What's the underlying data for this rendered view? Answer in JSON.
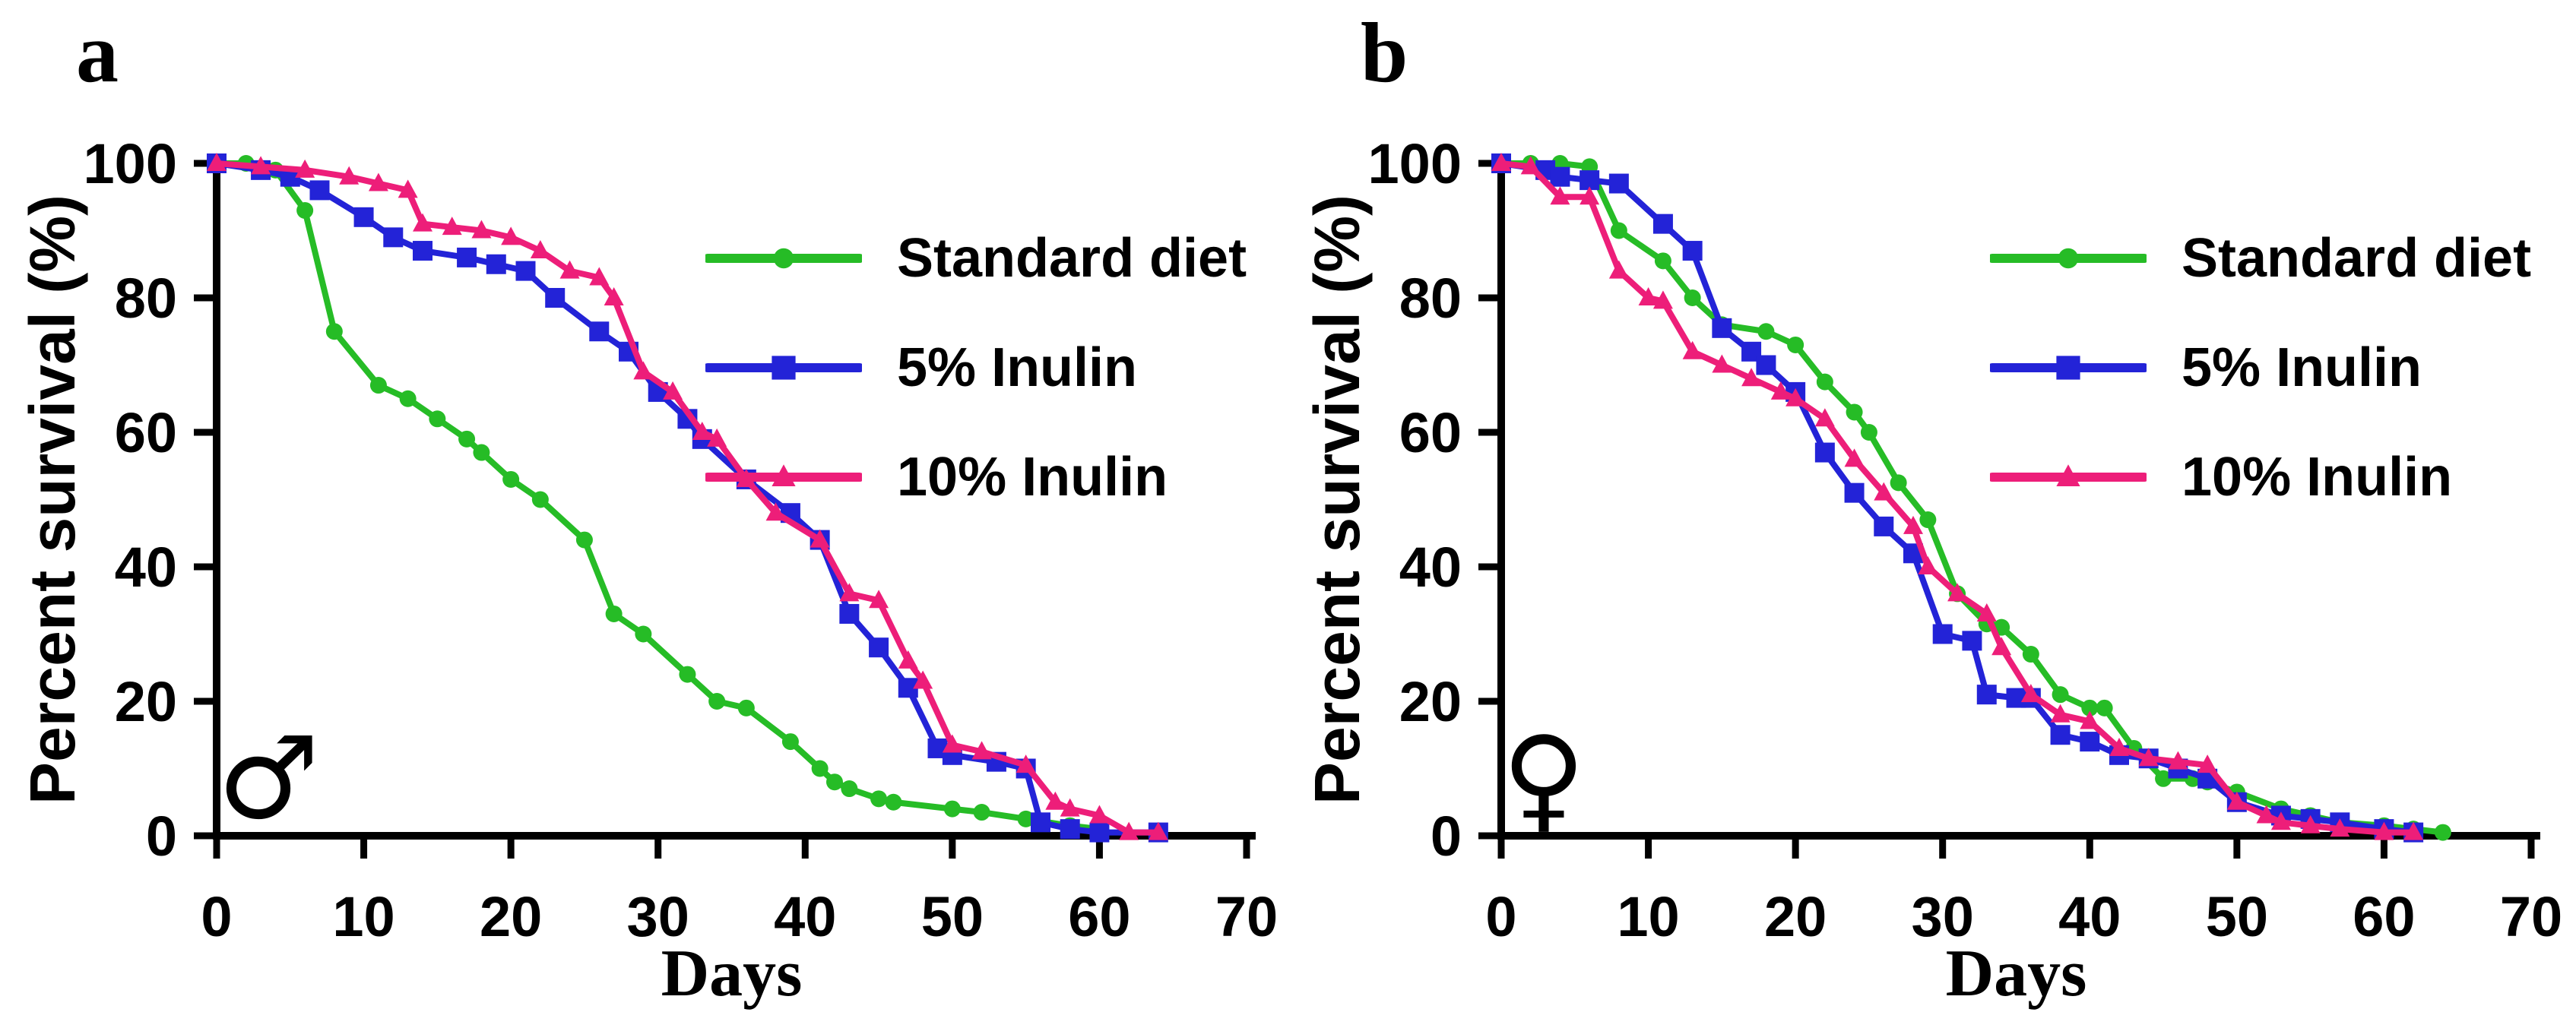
{
  "figure": {
    "background": "#FFFFFF",
    "text_color": "#000000",
    "axis_color": "#000000"
  },
  "chart_data": [
    {
      "type": "line",
      "panel_label": "a",
      "sex": "male",
      "sex_symbol": "♂",
      "xlabel": "Days",
      "ylabel": "Percent survival (%)",
      "xlim": [
        0,
        70
      ],
      "ylim": [
        0,
        100
      ],
      "xticks": [
        0,
        10,
        20,
        30,
        40,
        50,
        60,
        70
      ],
      "yticks": [
        0,
        20,
        40,
        60,
        80,
        100
      ],
      "grid": false,
      "legend_position": "upper-right-inside",
      "series": [
        {
          "name": "Standard diet",
          "color": "#26BC26",
          "marker": "circle",
          "points": [
            [
              0,
              100
            ],
            [
              2,
              100
            ],
            [
              4,
              99
            ],
            [
              6,
              93
            ],
            [
              8,
              75
            ],
            [
              11,
              67
            ],
            [
              13,
              65
            ],
            [
              15,
              62
            ],
            [
              17,
              59
            ],
            [
              18,
              57
            ],
            [
              20,
              53
            ],
            [
              22,
              50
            ],
            [
              25,
              44
            ],
            [
              27,
              33
            ],
            [
              29,
              30
            ],
            [
              32,
              24
            ],
            [
              34,
              20
            ],
            [
              36,
              19
            ],
            [
              39,
              14
            ],
            [
              41,
              10
            ],
            [
              42,
              8
            ],
            [
              43,
              7
            ],
            [
              45,
              5.5
            ],
            [
              46,
              5
            ],
            [
              50,
              4
            ],
            [
              52,
              3.5
            ],
            [
              55,
              2.5
            ],
            [
              58,
              1.5
            ],
            [
              60,
              1
            ]
          ]
        },
        {
          "name": "5% Inulin",
          "color": "#2323D7",
          "marker": "square",
          "points": [
            [
              0,
              100
            ],
            [
              3,
              99
            ],
            [
              5,
              98
            ],
            [
              7,
              96
            ],
            [
              10,
              92
            ],
            [
              12,
              89
            ],
            [
              14,
              87
            ],
            [
              17,
              86
            ],
            [
              19,
              85
            ],
            [
              21,
              84
            ],
            [
              23,
              80
            ],
            [
              26,
              75
            ],
            [
              28,
              72
            ],
            [
              30,
              66
            ],
            [
              32,
              62
            ],
            [
              33,
              59
            ],
            [
              36,
              53
            ],
            [
              39,
              48
            ],
            [
              41,
              44
            ],
            [
              43,
              33
            ],
            [
              45,
              28
            ],
            [
              47,
              22
            ],
            [
              49,
              13
            ],
            [
              50,
              12
            ],
            [
              53,
              11
            ],
            [
              55,
              10
            ],
            [
              56,
              2
            ],
            [
              58,
              1
            ],
            [
              60,
              0.5
            ],
            [
              64,
              0.5
            ]
          ]
        },
        {
          "name": "10% Inulin",
          "color": "#ED1E79",
          "marker": "triangle",
          "points": [
            [
              0,
              100
            ],
            [
              3,
              99.5
            ],
            [
              6,
              99
            ],
            [
              9,
              98
            ],
            [
              11,
              97
            ],
            [
              13,
              96
            ],
            [
              14,
              91
            ],
            [
              16,
              90.5
            ],
            [
              18,
              90
            ],
            [
              20,
              89
            ],
            [
              22,
              87
            ],
            [
              24,
              84
            ],
            [
              26,
              83
            ],
            [
              27,
              80
            ],
            [
              29,
              69
            ],
            [
              31,
              66
            ],
            [
              33,
              60
            ],
            [
              34,
              59
            ],
            [
              36,
              53
            ],
            [
              38,
              48
            ],
            [
              41,
              44
            ],
            [
              43,
              36
            ],
            [
              45,
              35
            ],
            [
              47,
              26
            ],
            [
              48,
              23
            ],
            [
              50,
              13.5
            ],
            [
              52,
              12.5
            ],
            [
              55,
              10.5
            ],
            [
              57,
              5
            ],
            [
              58,
              4
            ],
            [
              60,
              3
            ],
            [
              62,
              0.5
            ],
            [
              64,
              0.5
            ]
          ]
        }
      ]
    },
    {
      "type": "line",
      "panel_label": "b",
      "sex": "female",
      "sex_symbol": "♀",
      "xlabel": "Days",
      "ylabel": "Percent survival (%)",
      "xlim": [
        0,
        70
      ],
      "ylim": [
        0,
        100
      ],
      "xticks": [
        0,
        10,
        20,
        30,
        40,
        50,
        60,
        70
      ],
      "yticks": [
        0,
        20,
        40,
        60,
        80,
        100
      ],
      "grid": false,
      "legend_position": "upper-right-inside",
      "series": [
        {
          "name": "Standard diet",
          "color": "#26BC26",
          "marker": "circle",
          "points": [
            [
              0,
              100
            ],
            [
              2,
              100
            ],
            [
              4,
              100
            ],
            [
              6,
              99.5
            ],
            [
              8,
              90
            ],
            [
              11,
              85.5
            ],
            [
              13,
              80
            ],
            [
              15,
              76
            ],
            [
              18,
              75
            ],
            [
              20,
              73
            ],
            [
              22,
              67.5
            ],
            [
              24,
              63
            ],
            [
              25,
              60
            ],
            [
              27,
              52.5
            ],
            [
              29,
              47
            ],
            [
              31,
              36
            ],
            [
              33,
              31.5
            ],
            [
              34,
              31
            ],
            [
              36,
              27
            ],
            [
              38,
              21
            ],
            [
              40,
              19
            ],
            [
              41,
              19
            ],
            [
              43,
              13
            ],
            [
              45,
              8.5
            ],
            [
              47,
              8.5
            ],
            [
              48,
              8
            ],
            [
              50,
              6.5
            ],
            [
              53,
              4
            ],
            [
              55,
              3
            ],
            [
              57,
              2
            ],
            [
              60,
              1.5
            ],
            [
              62,
              1
            ],
            [
              64,
              0.5
            ]
          ]
        },
        {
          "name": "5% Inulin",
          "color": "#2323D7",
          "marker": "square",
          "points": [
            [
              0,
              100
            ],
            [
              3,
              99
            ],
            [
              4,
              98
            ],
            [
              6,
              97.5
            ],
            [
              8,
              97
            ],
            [
              11,
              91
            ],
            [
              13,
              87
            ],
            [
              15,
              75.5
            ],
            [
              17,
              72
            ],
            [
              18,
              70
            ],
            [
              20,
              66
            ],
            [
              22,
              57
            ],
            [
              24,
              51
            ],
            [
              26,
              46
            ],
            [
              28,
              42
            ],
            [
              30,
              30
            ],
            [
              32,
              29
            ],
            [
              33,
              21
            ],
            [
              35,
              20.5
            ],
            [
              36,
              20.5
            ],
            [
              38,
              15
            ],
            [
              40,
              14
            ],
            [
              42,
              12
            ],
            [
              44,
              11.5
            ],
            [
              46,
              10
            ],
            [
              48,
              8.5
            ],
            [
              50,
              5
            ],
            [
              53,
              3
            ],
            [
              55,
              2.5
            ],
            [
              57,
              2
            ],
            [
              60,
              1
            ],
            [
              62,
              0.5
            ]
          ]
        },
        {
          "name": "10% Inulin",
          "color": "#ED1E79",
          "marker": "triangle",
          "points": [
            [
              0,
              100
            ],
            [
              2,
              99.5
            ],
            [
              4,
              95
            ],
            [
              6,
              95
            ],
            [
              8,
              84
            ],
            [
              10,
              80
            ],
            [
              11,
              79.5
            ],
            [
              13,
              72
            ],
            [
              15,
              70
            ],
            [
              17,
              68
            ],
            [
              19,
              66
            ],
            [
              20,
              65
            ],
            [
              22,
              62
            ],
            [
              24,
              56
            ],
            [
              26,
              51
            ],
            [
              28,
              46
            ],
            [
              29,
              40
            ],
            [
              31,
              36
            ],
            [
              33,
              33
            ],
            [
              34,
              28
            ],
            [
              36,
              21
            ],
            [
              38,
              18
            ],
            [
              40,
              17
            ],
            [
              42,
              13
            ],
            [
              44,
              11.5
            ],
            [
              46,
              11
            ],
            [
              48,
              10.5
            ],
            [
              50,
              5
            ],
            [
              52,
              3
            ],
            [
              53,
              2
            ],
            [
              55,
              1.5
            ],
            [
              57,
              1
            ],
            [
              60,
              0.5
            ],
            [
              62,
              0.5
            ]
          ]
        }
      ]
    }
  ]
}
